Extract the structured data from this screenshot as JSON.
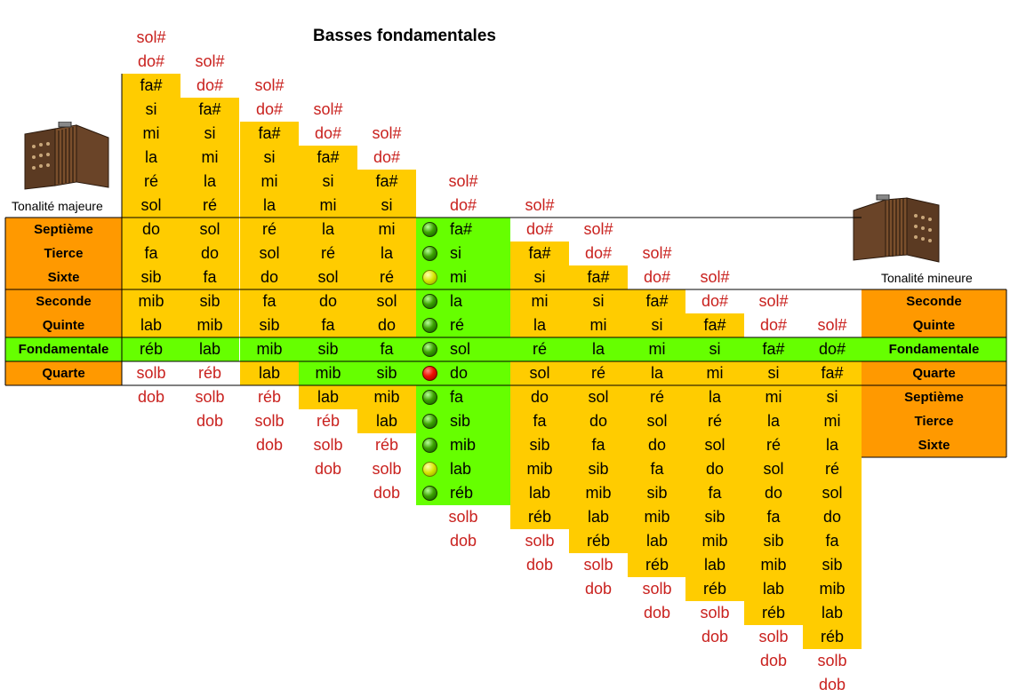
{
  "title": "Basses fondamentales",
  "captions": {
    "major": "Tonalité majeure",
    "minor": "Tonalité mineure"
  },
  "icons": {
    "major": "accordion-icon",
    "minor": "accordion-icon"
  },
  "colors": {
    "yellow": "#ffcc00",
    "green": "#66ff00",
    "orange": "#ff9900",
    "note_red": "#c9211e"
  },
  "labels": {
    "left": [
      "Septième",
      "Tierce",
      "Sixte",
      "Seconde",
      "Quinte",
      "Fondamentale",
      "Quarte"
    ],
    "right": [
      "Seconde",
      "Quinte",
      "Fondamentale",
      "Quarte",
      "Septième",
      "Tierce",
      "Sixte"
    ]
  },
  "columns": [
    [
      "sol#",
      "do#",
      "fa#",
      "si",
      "mi",
      "la",
      "ré",
      "sol",
      "do",
      "fa",
      "sib",
      "mib",
      "lab",
      "réb",
      "solb",
      "dob"
    ],
    [
      "sol#",
      "do#",
      "fa#",
      "si",
      "mi",
      "la",
      "ré",
      "sol",
      "do",
      "fa",
      "sib",
      "mib",
      "lab",
      "réb",
      "solb",
      "dob"
    ],
    [
      "sol#",
      "do#",
      "fa#",
      "si",
      "mi",
      "la",
      "ré",
      "sol",
      "do",
      "fa",
      "sib",
      "mib",
      "lab",
      "réb",
      "solb",
      "dob"
    ],
    [
      "sol#",
      "do#",
      "fa#",
      "si",
      "mi",
      "la",
      "ré",
      "sol",
      "do",
      "fa",
      "sib",
      "mib",
      "lab",
      "réb",
      "solb",
      "dob"
    ],
    [
      "sol#",
      "do#",
      "fa#",
      "si",
      "mi",
      "la",
      "ré",
      "sol",
      "do",
      "fa",
      "sib",
      "mib",
      "lab",
      "réb",
      "solb",
      "dob"
    ],
    [
      "sol#",
      "do#",
      "fa#",
      "si",
      "mi",
      "la",
      "ré",
      "sol",
      "do",
      "fa",
      "sib",
      "mib",
      "lab",
      "réb",
      "solb",
      "dob"
    ],
    [
      "sol#",
      "do#",
      "fa#",
      "si",
      "mi",
      "la",
      "ré",
      "sol",
      "do",
      "fa",
      "sib",
      "mib",
      "lab",
      "réb",
      "solb",
      "dob"
    ],
    [
      "sol#",
      "do#",
      "fa#",
      "si",
      "mi",
      "la",
      "ré",
      "sol",
      "do",
      "fa",
      "sib",
      "mib",
      "lab",
      "réb",
      "solb",
      "dob"
    ],
    [
      "sol#",
      "do#",
      "fa#",
      "si",
      "mi",
      "la",
      "ré",
      "sol",
      "do",
      "fa",
      "sib",
      "mib",
      "lab",
      "réb",
      "solb",
      "dob"
    ],
    [
      "sol#",
      "do#",
      "fa#",
      "si",
      "mi",
      "la",
      "ré",
      "sol",
      "do",
      "fa",
      "sib",
      "mib",
      "lab",
      "réb",
      "solb",
      "dob"
    ],
    [
      "sol#",
      "do#",
      "fa#",
      "si",
      "mi",
      "la",
      "ré",
      "sol",
      "do",
      "fa",
      "sib",
      "mib",
      "lab",
      "réb",
      "solb",
      "dob"
    ],
    [
      "sol#",
      "do#",
      "fa#",
      "si",
      "mi",
      "la",
      "ré",
      "sol",
      "do",
      "fa",
      "sib",
      "mib",
      "lab",
      "réb",
      "solb",
      "dob"
    ]
  ],
  "center_column": {
    "marked_notes": [
      "fa#",
      "si",
      "mi",
      "la",
      "ré",
      "sol",
      "do",
      "fa",
      "sib",
      "mib",
      "lab",
      "réb"
    ],
    "marker_colors": [
      "green",
      "green",
      "yellow",
      "green",
      "green",
      "green",
      "red",
      "green",
      "green",
      "green",
      "yellow",
      "green"
    ]
  }
}
